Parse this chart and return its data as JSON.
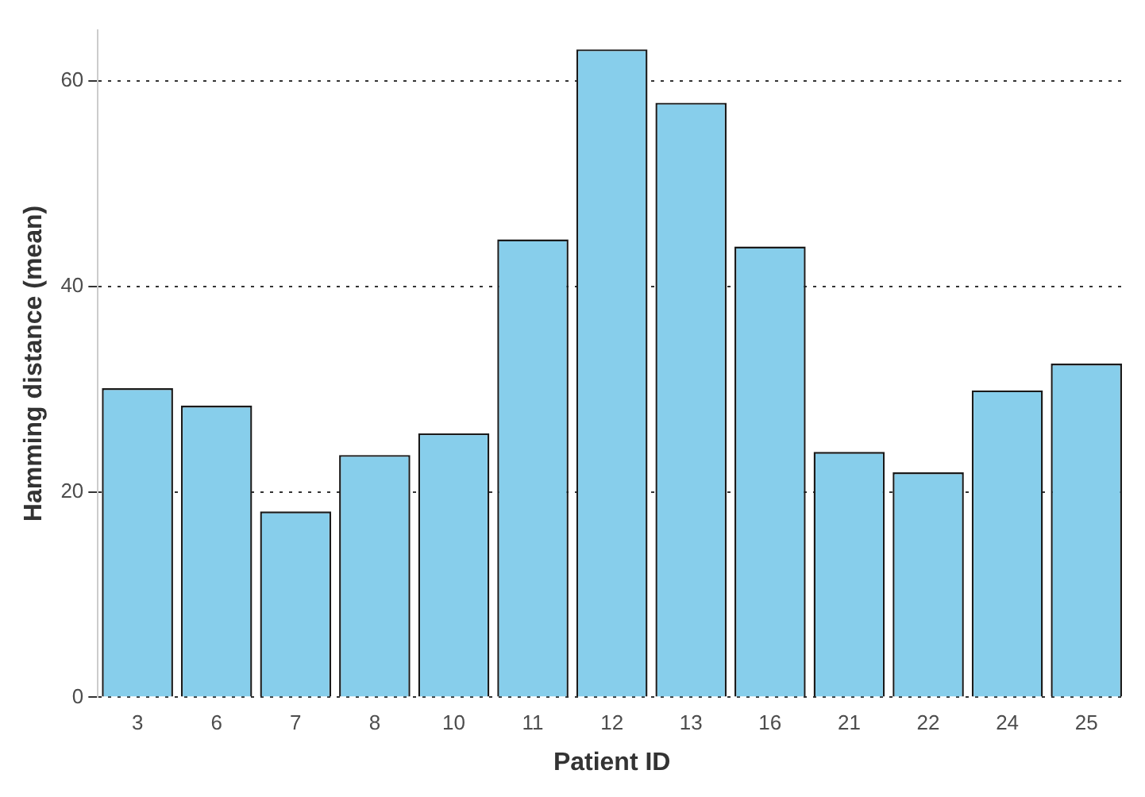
{
  "chart_data": {
    "type": "bar",
    "xlabel": "Patient ID",
    "ylabel": "Hamming distance (mean)",
    "categories": [
      "3",
      "6",
      "7",
      "8",
      "10",
      "11",
      "12",
      "13",
      "16",
      "21",
      "22",
      "24",
      "25"
    ],
    "values": [
      30.1,
      28.4,
      18.1,
      23.6,
      25.7,
      44.6,
      63.1,
      57.9,
      43.9,
      23.9,
      21.9,
      29.9,
      32.5
    ],
    "color": "#87ceeb",
    "ylim": [
      0,
      65
    ],
    "yticks": [
      0,
      20,
      40,
      60
    ],
    "grid": "y"
  }
}
